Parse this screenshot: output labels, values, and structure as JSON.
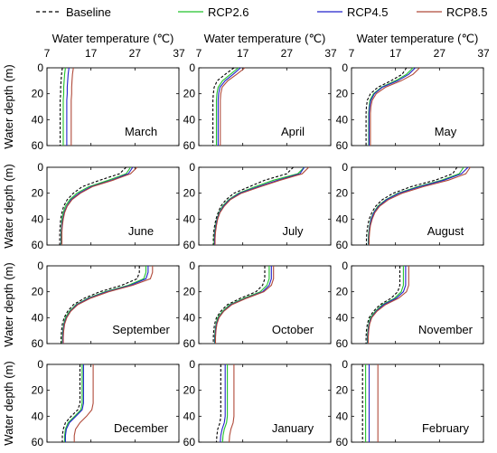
{
  "chart_data": {
    "type": "line",
    "legend": {
      "position": "top",
      "entries": [
        {
          "name": "Baseline",
          "color": "#000000",
          "dash": "dashed"
        },
        {
          "name": "RCP2.6",
          "color": "#22c22b",
          "dash": "solid"
        },
        {
          "name": "RCP4.5",
          "color": "#2222cc",
          "dash": "solid"
        },
        {
          "name": "RCP8.5",
          "color": "#b04a3a",
          "dash": "solid"
        }
      ]
    },
    "xlabel": "Water temperature (℃)",
    "ylabel": "Water depth (m)",
    "xlim": [
      7,
      37
    ],
    "ylim": [
      0,
      60
    ],
    "xticks": [
      "7",
      "17",
      "27",
      "37"
    ],
    "yticks": [
      "0",
      "20",
      "40",
      "60"
    ],
    "depth": [
      0,
      5,
      10,
      15,
      20,
      25,
      30,
      35,
      40,
      45,
      50,
      55,
      60
    ],
    "panels": [
      {
        "month": "March",
        "series": {
          "Baseline": [
            10.5,
            10.3,
            10.2,
            10.1,
            10.1,
            10.0,
            10.0,
            10.0,
            10.0,
            10.0,
            10.0,
            10.0,
            10.0
          ],
          "RCP2.6": [
            11.2,
            11.0,
            10.9,
            10.8,
            10.8,
            10.7,
            10.7,
            10.7,
            10.7,
            10.7,
            10.7,
            10.7,
            10.7
          ],
          "RCP4.5": [
            12.0,
            11.8,
            11.7,
            11.6,
            11.6,
            11.5,
            11.5,
            11.5,
            11.5,
            11.5,
            11.5,
            11.5,
            11.5
          ],
          "RCP8.5": [
            13.0,
            12.8,
            12.7,
            12.6,
            12.6,
            12.5,
            12.5,
            12.5,
            12.5,
            12.5,
            12.5,
            12.5,
            12.5
          ]
        }
      },
      {
        "month": "April",
        "series": {
          "Baseline": [
            15.0,
            13.0,
            11.2,
            10.5,
            10.3,
            10.2,
            10.2,
            10.2,
            10.2,
            10.2,
            10.2,
            10.2,
            10.2
          ],
          "RCP2.6": [
            16.0,
            14.2,
            12.4,
            11.4,
            11.1,
            11.0,
            11.0,
            11.0,
            11.0,
            11.0,
            11.0,
            11.0,
            11.0
          ],
          "RCP4.5": [
            16.5,
            14.8,
            13.0,
            11.8,
            11.5,
            11.4,
            11.4,
            11.4,
            11.4,
            11.4,
            11.4,
            11.4,
            11.4
          ],
          "RCP8.5": [
            17.5,
            15.6,
            13.6,
            12.3,
            12.0,
            11.9,
            11.9,
            11.9,
            11.9,
            11.9,
            11.9,
            11.9,
            11.9
          ]
        }
      },
      {
        "month": "May",
        "series": {
          "Baseline": [
            19.5,
            18.5,
            16.0,
            13.0,
            11.3,
            10.6,
            10.4,
            10.3,
            10.3,
            10.3,
            10.3,
            10.3,
            10.3
          ],
          "RCP2.6": [
            21.0,
            19.5,
            17.0,
            13.8,
            12.0,
            11.2,
            11.0,
            10.9,
            10.9,
            10.9,
            10.9,
            10.9,
            10.9
          ],
          "RCP4.5": [
            21.5,
            20.0,
            17.5,
            14.0,
            12.2,
            11.4,
            11.1,
            11.0,
            11.0,
            11.0,
            11.0,
            11.0,
            11.0
          ],
          "RCP8.5": [
            22.5,
            21.0,
            18.3,
            14.7,
            12.6,
            11.7,
            11.4,
            11.3,
            11.3,
            11.3,
            11.3,
            11.3,
            11.3
          ]
        }
      },
      {
        "month": "June",
        "series": {
          "Baseline": [
            25.0,
            23.5,
            19.0,
            15.0,
            13.0,
            11.6,
            10.8,
            10.4,
            10.1,
            10.0,
            9.9,
            9.9,
            9.9
          ],
          "RCP2.6": [
            26.0,
            25.0,
            21.0,
            16.5,
            13.8,
            12.2,
            11.2,
            10.7,
            10.4,
            10.3,
            10.2,
            10.2,
            10.2
          ],
          "RCP4.5": [
            26.5,
            25.5,
            21.7,
            17.0,
            14.3,
            12.5,
            11.5,
            10.9,
            10.6,
            10.4,
            10.3,
            10.3,
            10.3
          ],
          "RCP8.5": [
            27.5,
            26.0,
            22.0,
            17.3,
            14.6,
            12.7,
            11.6,
            11.0,
            10.7,
            10.5,
            10.4,
            10.4,
            10.4
          ]
        }
      },
      {
        "month": "July",
        "series": {
          "Baseline": [
            28.5,
            27.0,
            22.0,
            18.5,
            15.0,
            13.2,
            12.0,
            11.4,
            10.9,
            10.6,
            10.4,
            10.3,
            10.3
          ],
          "RCP2.6": [
            31.0,
            29.5,
            24.0,
            19.8,
            16.0,
            13.8,
            12.4,
            11.6,
            11.1,
            10.8,
            10.6,
            10.5,
            10.5
          ],
          "RCP4.5": [
            31.0,
            30.0,
            25.0,
            20.5,
            16.3,
            14.0,
            12.6,
            11.7,
            11.2,
            10.9,
            10.7,
            10.6,
            10.6
          ],
          "RCP8.5": [
            32.0,
            30.5,
            25.5,
            21.0,
            16.7,
            14.2,
            12.8,
            11.8,
            11.3,
            11.0,
            10.8,
            10.7,
            10.7
          ]
        }
      },
      {
        "month": "August",
        "series": {
          "Baseline": [
            31.0,
            30.0,
            26.0,
            20.5,
            16.5,
            14.0,
            12.5,
            11.6,
            11.0,
            10.7,
            10.5,
            10.4,
            10.4
          ],
          "RCP2.6": [
            32.5,
            31.5,
            27.5,
            22.0,
            17.5,
            14.8,
            13.0,
            12.0,
            11.4,
            11.1,
            10.9,
            10.8,
            10.8
          ],
          "RCP4.5": [
            33.5,
            32.0,
            28.0,
            22.5,
            17.8,
            15.0,
            13.2,
            12.1,
            11.5,
            11.2,
            11.0,
            10.9,
            10.9
          ],
          "RCP8.5": [
            34.0,
            33.0,
            29.0,
            23.3,
            18.5,
            15.4,
            13.4,
            12.3,
            11.7,
            11.3,
            11.1,
            11.0,
            11.0
          ]
        }
      },
      {
        "month": "September",
        "series": {
          "Baseline": [
            28.0,
            28.0,
            27.5,
            24.0,
            19.0,
            15.5,
            13.0,
            11.7,
            10.9,
            10.5,
            10.3,
            10.2,
            10.2
          ],
          "RCP2.6": [
            29.5,
            29.5,
            29.0,
            25.5,
            20.2,
            16.3,
            13.6,
            12.1,
            11.2,
            10.8,
            10.6,
            10.5,
            10.5
          ],
          "RCP4.5": [
            30.0,
            30.0,
            29.5,
            26.0,
            20.6,
            16.6,
            13.8,
            12.3,
            11.4,
            10.9,
            10.7,
            10.6,
            10.6
          ],
          "RCP8.5": [
            31.0,
            31.0,
            30.5,
            26.5,
            21.0,
            16.9,
            14.0,
            12.4,
            11.5,
            11.0,
            10.8,
            10.7,
            10.7
          ]
        }
      },
      {
        "month": "October",
        "series": {
          "Baseline": [
            22.0,
            22.0,
            22.0,
            21.5,
            20.0,
            16.5,
            13.5,
            12.0,
            11.0,
            10.6,
            10.4,
            10.3,
            10.3
          ],
          "RCP2.6": [
            23.0,
            23.0,
            23.0,
            22.5,
            21.0,
            17.3,
            14.0,
            12.4,
            11.3,
            10.9,
            10.7,
            10.6,
            10.6
          ],
          "RCP4.5": [
            23.5,
            23.5,
            23.5,
            23.0,
            21.5,
            17.7,
            14.3,
            12.6,
            11.5,
            11.0,
            10.8,
            10.7,
            10.7
          ],
          "RCP8.5": [
            24.0,
            24.0,
            24.0,
            23.5,
            21.8,
            17.9,
            14.5,
            12.7,
            11.6,
            11.1,
            10.9,
            10.8,
            10.8
          ]
        }
      },
      {
        "month": "November",
        "series": {
          "Baseline": [
            18.0,
            18.0,
            18.0,
            18.0,
            17.5,
            16.0,
            13.5,
            12.0,
            11.0,
            10.6,
            10.4,
            10.3,
            10.3
          ],
          "RCP2.6": [
            18.8,
            18.8,
            18.8,
            18.8,
            18.3,
            16.8,
            14.0,
            12.4,
            11.3,
            10.9,
            10.7,
            10.6,
            10.6
          ],
          "RCP4.5": [
            19.3,
            19.3,
            19.3,
            19.3,
            18.8,
            17.2,
            14.3,
            12.6,
            11.5,
            11.0,
            10.8,
            10.7,
            10.7
          ],
          "RCP8.5": [
            20.0,
            20.0,
            20.0,
            20.0,
            19.5,
            17.7,
            14.7,
            12.8,
            11.6,
            11.1,
            10.9,
            10.8,
            10.8
          ]
        }
      },
      {
        "month": "December",
        "series": {
          "Baseline": [
            14.5,
            14.5,
            14.5,
            14.5,
            14.5,
            14.5,
            14.5,
            14.0,
            12.5,
            11.2,
            10.7,
            10.5,
            10.5
          ],
          "RCP2.6": [
            15.0,
            15.0,
            15.0,
            15.0,
            15.0,
            15.0,
            15.0,
            14.7,
            13.3,
            11.8,
            11.2,
            11.0,
            11.0
          ],
          "RCP4.5": [
            15.3,
            15.3,
            15.3,
            15.3,
            15.3,
            15.3,
            15.3,
            15.0,
            13.6,
            12.1,
            11.4,
            11.2,
            11.2
          ],
          "RCP8.5": [
            17.5,
            17.5,
            17.5,
            17.5,
            17.5,
            17.5,
            17.5,
            17.2,
            16.0,
            14.5,
            13.5,
            13.2,
            13.2
          ]
        }
      },
      {
        "month": "January",
        "series": {
          "Baseline": [
            12.0,
            12.0,
            12.0,
            12.0,
            12.0,
            12.0,
            12.0,
            12.0,
            12.0,
            11.8,
            11.3,
            11.1,
            11.0
          ],
          "RCP2.6": [
            13.5,
            13.5,
            13.5,
            13.5,
            13.5,
            13.5,
            13.5,
            13.5,
            13.5,
            13.3,
            12.8,
            12.5,
            12.4
          ],
          "RCP4.5": [
            13.0,
            13.0,
            13.0,
            13.0,
            13.0,
            13.0,
            13.0,
            13.0,
            13.0,
            12.8,
            12.3,
            12.0,
            11.9
          ],
          "RCP8.5": [
            15.0,
            15.0,
            15.0,
            15.0,
            15.0,
            15.0,
            15.0,
            15.0,
            15.0,
            14.8,
            14.3,
            14.0,
            13.9
          ]
        }
      },
      {
        "month": "February",
        "series": {
          "Baseline": [
            9.5,
            9.5,
            9.5,
            9.5,
            9.5,
            9.5,
            9.5,
            9.5,
            9.5,
            9.5,
            9.5,
            9.5,
            9.5
          ],
          "RCP2.6": [
            10.2,
            10.2,
            10.2,
            10.2,
            10.2,
            10.2,
            10.2,
            10.2,
            10.2,
            10.2,
            10.2,
            10.2,
            10.2
          ],
          "RCP4.5": [
            11.0,
            11.0,
            11.0,
            11.0,
            11.0,
            11.0,
            11.0,
            11.0,
            11.0,
            11.0,
            11.0,
            11.0,
            11.0
          ],
          "RCP8.5": [
            13.0,
            13.0,
            13.0,
            13.0,
            13.0,
            13.0,
            13.0,
            13.0,
            13.0,
            13.0,
            13.0,
            13.0,
            13.0
          ]
        }
      }
    ]
  }
}
